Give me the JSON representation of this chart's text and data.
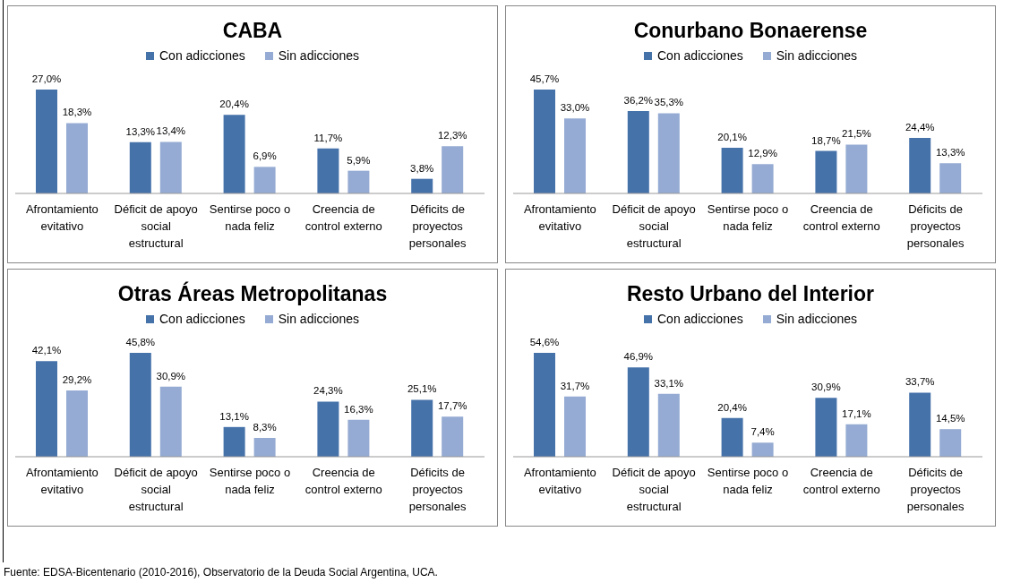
{
  "chart_data": [
    {
      "type": "bar",
      "title": "CABA",
      "categories": [
        "Afrontamiento evitativo",
        "Déficit de apoyo social estructural",
        "Sentirse poco o nada feliz",
        "Creencia de control externo",
        "Déficits de proyectos personales"
      ],
      "legend": "top",
      "series": [
        {
          "name": "Con adicciones",
          "color": "#4672aa",
          "values": [
            27.0,
            13.3,
            20.4,
            11.7,
            3.8
          ],
          "value_labels": [
            "27,0%",
            "13,3%",
            "20,4%",
            "11,7%",
            "3,8%"
          ]
        },
        {
          "name": "Sin adicciones",
          "color": "#95abd3",
          "values": [
            18.3,
            13.4,
            6.9,
            5.9,
            12.3
          ],
          "value_labels": [
            "18,3%",
            "13,4%",
            "6,9%",
            "5,9%",
            "12,3%"
          ]
        }
      ]
    },
    {
      "type": "bar",
      "title": "Conurbano Bonaerense",
      "categories": [
        "Afrontamiento evitativo",
        "Déficit de apoyo social estructural",
        "Sentirse poco o nada feliz",
        "Creencia de control externo",
        "Déficits de proyectos personales"
      ],
      "legend": "top",
      "series": [
        {
          "name": "Con adicciones",
          "color": "#4672aa",
          "values": [
            45.7,
            36.2,
            20.1,
            18.7,
            24.4
          ],
          "value_labels": [
            "45,7%",
            "36,2%",
            "20,1%",
            "18,7%",
            "24,4%"
          ]
        },
        {
          "name": "Sin adicciones",
          "color": "#95abd3",
          "values": [
            33.0,
            35.3,
            12.9,
            21.5,
            13.3
          ],
          "value_labels": [
            "33,0%",
            "35,3%",
            "12,9%",
            "21,5%",
            "13,3%"
          ]
        }
      ]
    },
    {
      "type": "bar",
      "title": "Otras Áreas Metropolitanas",
      "categories": [
        "Afrontamiento evitativo",
        "Déficit de apoyo social estructural",
        "Sentirse poco o nada feliz",
        "Creencia de control externo",
        "Déficits de proyectos personales"
      ],
      "legend": "top",
      "series": [
        {
          "name": "Con adicciones",
          "color": "#4672aa",
          "values": [
            42.1,
            45.8,
            13.1,
            24.3,
            25.1
          ],
          "value_labels": [
            "42,1%",
            "45,8%",
            "13,1%",
            "24,3%",
            "25,1%"
          ]
        },
        {
          "name": "Sin adicciones",
          "color": "#95abd3",
          "values": [
            29.2,
            30.9,
            8.3,
            16.3,
            17.7
          ],
          "value_labels": [
            "29,2%",
            "30,9%",
            "8,3%",
            "16,3%",
            "17,7%"
          ]
        }
      ]
    },
    {
      "type": "bar",
      "title": "Resto Urbano del Interior",
      "categories": [
        "Afrontamiento evitativo",
        "Déficit de apoyo social estructural",
        "Sentirse poco o nada feliz",
        "Creencia de control externo",
        "Déficits de proyectos personales"
      ],
      "legend": "top",
      "annotations": [
        "Fuente: EDSA-Bicentenario (2010-2016), Observatorio de la Deuda Social Argentina, UCA."
      ],
      "series": [
        {
          "name": "Con adicciones",
          "color": "#4672aa",
          "values": [
            54.6,
            46.9,
            20.4,
            30.9,
            33.7
          ],
          "value_labels": [
            "54,6%",
            "46,9%",
            "20,4%",
            "30,9%",
            "33,7%"
          ]
        },
        {
          "name": "Sin adicciones",
          "color": "#95abd3",
          "values": [
            31.7,
            33.1,
            7.4,
            17.1,
            14.5
          ],
          "value_labels": [
            "31,7%",
            "33,1%",
            "7,4%",
            "17,1%",
            "14,5%"
          ]
        }
      ]
    }
  ]
}
